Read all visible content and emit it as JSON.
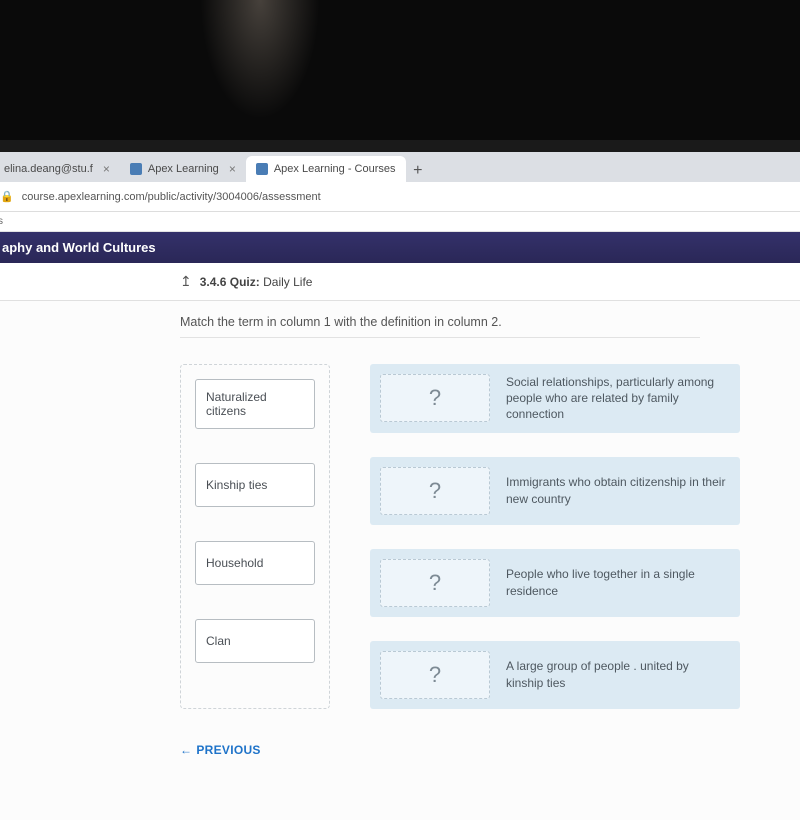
{
  "browser": {
    "tabs": [
      {
        "title": "elina.deang@stu.f",
        "active": false
      },
      {
        "title": "Apex Learning",
        "active": false
      },
      {
        "title": "Apex Learning - Courses",
        "active": true
      }
    ],
    "url": "course.apexlearning.com/public/activity/3004006/assessment",
    "bookmarks_hint": "s"
  },
  "course": {
    "title": "aphy and World Cultures"
  },
  "quiz": {
    "crumb": "3.4.6 Quiz:",
    "subject": "Daily Life",
    "prompt": "Match the term in column 1 with the definition in column 2.",
    "terms": [
      "Naturalized citizens",
      "Kinship ties",
      "Household",
      "Clan"
    ],
    "placeholder": "?",
    "definitions": [
      "Social relationships, particularly among people who are related by family connection",
      "Immigrants who obtain citizenship in their new country",
      "People who live together in a single residence",
      "A large group of people . united by kinship ties"
    ],
    "prev_label": "PREVIOUS"
  },
  "colors": {
    "header_bg": "#2d2a5a",
    "def_bg": "#dceaf3",
    "drop_bg": "#eef5fa",
    "link": "#1e73c9"
  }
}
